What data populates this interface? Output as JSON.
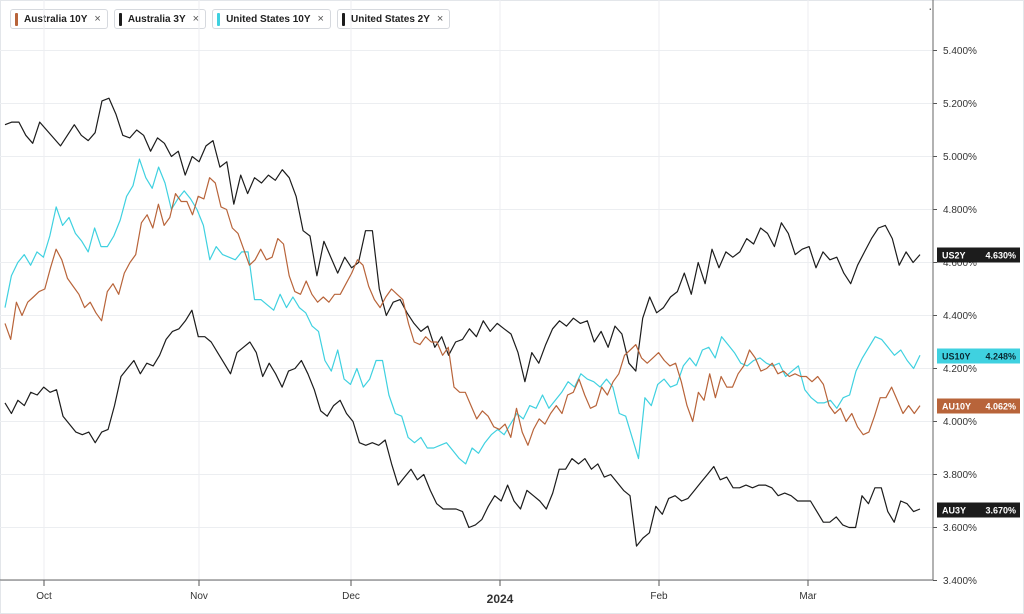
{
  "legend": [
    {
      "label": "Australia 10Y",
      "color": "#b8643a",
      "close": "×"
    },
    {
      "label": "Australia 3Y",
      "color": "#1c1c1c",
      "close": "×"
    },
    {
      "label": "United States 10Y",
      "color": "#3fd1e0",
      "close": "×"
    },
    {
      "label": "United States 2Y",
      "color": "#1c1c1c",
      "close": "×"
    }
  ],
  "menu_dot": "·",
  "chart_data": {
    "type": "line",
    "x_tick_labels": [
      "Oct",
      "Nov",
      "Dec",
      "2024",
      "Feb",
      "Mar"
    ],
    "y_tick_labels": [
      "5.400%",
      "5.200%",
      "5.000%",
      "4.800%",
      "4.600%",
      "4.400%",
      "4.200%",
      "4.000%",
      "3.800%",
      "3.600%",
      "3.400%"
    ],
    "ylim": [
      3.4,
      5.6
    ],
    "grid": true,
    "series": [
      {
        "name": "United States 2Y",
        "tag": "US2Y",
        "last_value_label": "4.630%",
        "color": "#1c1c1c",
        "values": [
          5.12,
          5.13,
          5.13,
          5.08,
          5.05,
          5.13,
          5.1,
          5.07,
          5.04,
          5.08,
          5.12,
          5.08,
          5.06,
          5.09,
          5.21,
          5.22,
          5.16,
          5.08,
          5.07,
          5.1,
          5.08,
          5.02,
          5.07,
          5.05,
          5.0,
          5.02,
          4.93,
          5.0,
          4.98,
          5.04,
          5.06,
          4.96,
          4.98,
          4.82,
          4.93,
          4.86,
          4.92,
          4.9,
          4.93,
          4.91,
          4.95,
          4.92,
          4.85,
          4.72,
          4.7,
          4.55,
          4.68,
          4.62,
          4.56,
          4.62,
          4.58,
          4.6,
          4.72,
          4.72,
          4.5,
          4.4,
          4.45,
          4.46,
          4.41,
          4.37,
          4.34,
          4.36,
          4.28,
          4.32,
          4.25,
          4.3,
          4.31,
          4.35,
          4.32,
          4.38,
          4.34,
          4.37,
          4.35,
          4.33,
          4.26,
          4.15,
          4.26,
          4.22,
          4.29,
          4.35,
          4.38,
          4.36,
          4.39,
          4.37,
          4.38,
          4.3,
          4.34,
          4.28,
          4.36,
          4.33,
          4.22,
          4.19,
          4.39,
          4.47,
          4.41,
          4.43,
          4.47,
          4.49,
          4.56,
          4.48,
          4.6,
          4.52,
          4.65,
          4.58,
          4.64,
          4.62,
          4.64,
          4.69,
          4.67,
          4.73,
          4.71,
          4.66,
          4.75,
          4.71,
          4.63,
          4.65,
          4.66,
          4.58,
          4.64,
          4.61,
          4.62,
          4.56,
          4.52,
          4.59,
          4.64,
          4.69,
          4.73,
          4.74,
          4.69,
          4.59,
          4.64,
          4.6,
          4.63
        ]
      },
      {
        "name": "Australia 3Y",
        "tag": "AU3Y",
        "last_value_label": "3.670%",
        "color": "#1c1c1c",
        "values": [
          4.07,
          4.03,
          4.08,
          4.06,
          4.11,
          4.1,
          4.13,
          4.11,
          4.12,
          4.02,
          3.99,
          3.96,
          3.95,
          3.96,
          3.92,
          3.96,
          3.97,
          4.06,
          4.17,
          4.2,
          4.23,
          4.18,
          4.22,
          4.21,
          4.25,
          4.31,
          4.34,
          4.35,
          4.38,
          4.42,
          4.32,
          4.32,
          4.3,
          4.26,
          4.22,
          4.18,
          4.26,
          4.28,
          4.3,
          4.26,
          4.17,
          4.22,
          4.18,
          4.13,
          4.19,
          4.2,
          4.23,
          4.18,
          4.12,
          4.04,
          4.02,
          4.06,
          4.08,
          4.03,
          4.0,
          3.92,
          3.91,
          3.92,
          3.91,
          3.93,
          3.84,
          3.76,
          3.79,
          3.82,
          3.78,
          3.8,
          3.74,
          3.69,
          3.67,
          3.67,
          3.67,
          3.66,
          3.6,
          3.61,
          3.63,
          3.68,
          3.72,
          3.7,
          3.76,
          3.7,
          3.67,
          3.74,
          3.72,
          3.7,
          3.67,
          3.73,
          3.82,
          3.82,
          3.86,
          3.84,
          3.86,
          3.82,
          3.84,
          3.79,
          3.8,
          3.77,
          3.74,
          3.72,
          3.53,
          3.56,
          3.58,
          3.68,
          3.65,
          3.71,
          3.72,
          3.7,
          3.71,
          3.74,
          3.77,
          3.8,
          3.83,
          3.78,
          3.79,
          3.75,
          3.75,
          3.76,
          3.75,
          3.76,
          3.76,
          3.75,
          3.72,
          3.73,
          3.72,
          3.7,
          3.7,
          3.7,
          3.66,
          3.62,
          3.62,
          3.64,
          3.61,
          3.6,
          3.6,
          3.72,
          3.69,
          3.75,
          3.75,
          3.66,
          3.62,
          3.7,
          3.69,
          3.66,
          3.67
        ]
      },
      {
        "name": "United States 10Y",
        "tag": "US10Y",
        "last_value_label": "4.248%",
        "color": "#3fd1e0",
        "values": [
          4.43,
          4.55,
          4.6,
          4.63,
          4.59,
          4.64,
          4.62,
          4.7,
          4.81,
          4.74,
          4.77,
          4.71,
          4.68,
          4.64,
          4.73,
          4.66,
          4.66,
          4.7,
          4.76,
          4.85,
          4.89,
          4.99,
          4.92,
          4.88,
          4.96,
          4.9,
          4.8,
          4.84,
          4.87,
          4.84,
          4.8,
          4.74,
          4.61,
          4.66,
          4.63,
          4.62,
          4.61,
          4.64,
          4.64,
          4.46,
          4.46,
          4.44,
          4.42,
          4.48,
          4.43,
          4.47,
          4.43,
          4.41,
          4.36,
          4.34,
          4.23,
          4.19,
          4.27,
          4.16,
          4.14,
          4.2,
          4.13,
          4.16,
          4.23,
          4.23,
          4.1,
          4.03,
          4.02,
          3.94,
          3.92,
          3.94,
          3.9,
          3.9,
          3.91,
          3.92,
          3.89,
          3.86,
          3.84,
          3.9,
          3.88,
          3.92,
          3.95,
          3.97,
          3.95,
          3.99,
          4.03,
          4.01,
          4.06,
          4.05,
          4.1,
          4.05,
          4.08,
          4.11,
          4.15,
          4.13,
          4.18,
          4.16,
          4.15,
          4.13,
          4.16,
          4.13,
          4.03,
          4.02,
          3.94,
          3.86,
          4.09,
          4.06,
          4.14,
          4.16,
          4.13,
          4.14,
          4.21,
          4.24,
          4.21,
          4.27,
          4.28,
          4.24,
          4.32,
          4.29,
          4.26,
          4.22,
          4.21,
          4.23,
          4.24,
          4.22,
          4.21,
          4.22,
          4.17,
          4.19,
          4.21,
          4.12,
          4.09,
          4.07,
          4.07,
          4.08,
          4.05,
          4.09,
          4.1,
          4.19,
          4.24,
          4.28,
          4.32,
          4.31,
          4.28,
          4.25,
          4.27,
          4.23,
          4.2,
          4.25
        ]
      },
      {
        "name": "Australia 10Y",
        "tag": "AU10Y",
        "last_value_label": "4.062%",
        "color": "#b8643a",
        "values": [
          4.37,
          4.31,
          4.45,
          4.4,
          4.45,
          4.47,
          4.49,
          4.5,
          4.58,
          4.65,
          4.61,
          4.54,
          4.51,
          4.48,
          4.43,
          4.45,
          4.41,
          4.38,
          4.49,
          4.52,
          4.48,
          4.56,
          4.6,
          4.63,
          4.75,
          4.78,
          4.73,
          4.82,
          4.74,
          4.77,
          4.86,
          4.83,
          4.83,
          4.78,
          4.85,
          4.84,
          4.92,
          4.9,
          4.81,
          4.8,
          4.73,
          4.71,
          4.65,
          4.59,
          4.61,
          4.65,
          4.61,
          4.62,
          4.69,
          4.67,
          4.55,
          4.49,
          4.48,
          4.53,
          4.48,
          4.45,
          4.47,
          4.45,
          4.48,
          4.48,
          4.52,
          4.56,
          4.61,
          4.59,
          4.51,
          4.46,
          4.43,
          4.47,
          4.5,
          4.48,
          4.46,
          4.37,
          4.3,
          4.29,
          4.32,
          4.3,
          4.3,
          4.25,
          4.28,
          4.13,
          4.11,
          4.11,
          4.06,
          4.01,
          4.04,
          4.02,
          3.98,
          3.97,
          3.99,
          3.94,
          4.05,
          3.96,
          3.91,
          3.97,
          4.01,
          3.99,
          4.03,
          4.06,
          4.03,
          4.1,
          4.11,
          4.16,
          4.1,
          4.05,
          4.06,
          4.13,
          4.1,
          4.15,
          4.18,
          4.25,
          4.27,
          4.29,
          4.24,
          4.22,
          4.24,
          4.26,
          4.23,
          4.21,
          4.22,
          4.15,
          4.06,
          4.0,
          4.11,
          4.08,
          4.18,
          4.09,
          4.17,
          4.13,
          4.13,
          4.18,
          4.21,
          4.27,
          4.24,
          4.19,
          4.2,
          4.22,
          4.18,
          4.19,
          4.17,
          4.18,
          4.17,
          4.17,
          4.15,
          4.17,
          4.14,
          4.06,
          4.03,
          4.05,
          4.0,
          4.03,
          3.98,
          3.95,
          3.96,
          4.02,
          4.09,
          4.09,
          4.13,
          4.08,
          4.03,
          4.06,
          4.03,
          4.06
        ]
      }
    ]
  }
}
